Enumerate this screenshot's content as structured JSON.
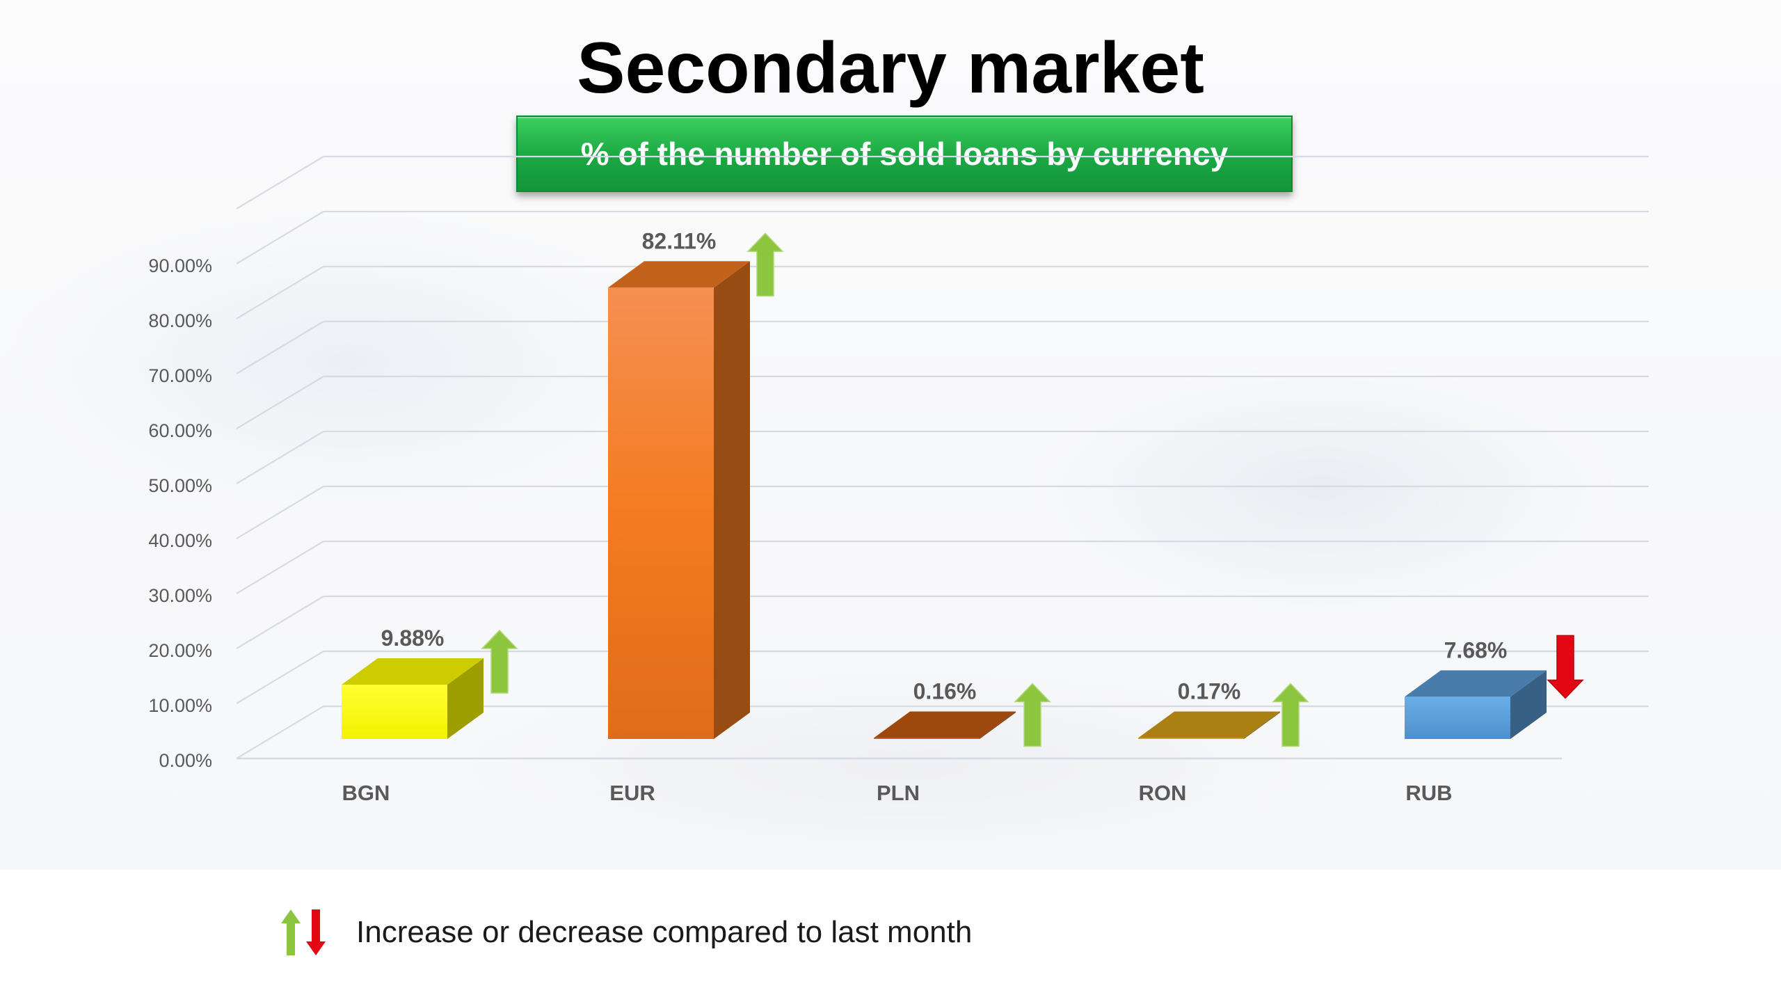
{
  "title": "Secondary market",
  "subtitle": "% of the number of sold loans by currency",
  "legend": {
    "text": "Increase or decrease compared to last month",
    "icons": [
      "arrow-up-green-icon",
      "arrow-down-red-icon"
    ]
  },
  "colors": {
    "up_arrow": "#8cc63f",
    "down_arrow": "#e30613",
    "gridline": "#d6dbe3",
    "axis_text": "#595959"
  },
  "chart_data": {
    "type": "bar",
    "style": "3d-column",
    "categories": [
      "BGN",
      "EUR",
      "PLN",
      "RON",
      "RUB"
    ],
    "values": [
      9.88,
      82.11,
      0.16,
      0.17,
      7.68
    ],
    "data_labels": [
      "9.88%",
      "82.11%",
      "0.16%",
      "0.17%",
      "7.68%"
    ],
    "trend": [
      "up",
      "up",
      "up",
      "up",
      "down"
    ],
    "bar_colors": [
      "#ffff00",
      "#f47b20",
      "#c55a11",
      "#d4a017",
      "#5b9bd5"
    ],
    "ylim": [
      0,
      90
    ],
    "yticks": [
      "0.00%",
      "10.00%",
      "20.00%",
      "30.00%",
      "40.00%",
      "50.00%",
      "60.00%",
      "70.00%",
      "80.00%",
      "90.00%"
    ],
    "grid": true,
    "legend_position": "bottom-left"
  }
}
